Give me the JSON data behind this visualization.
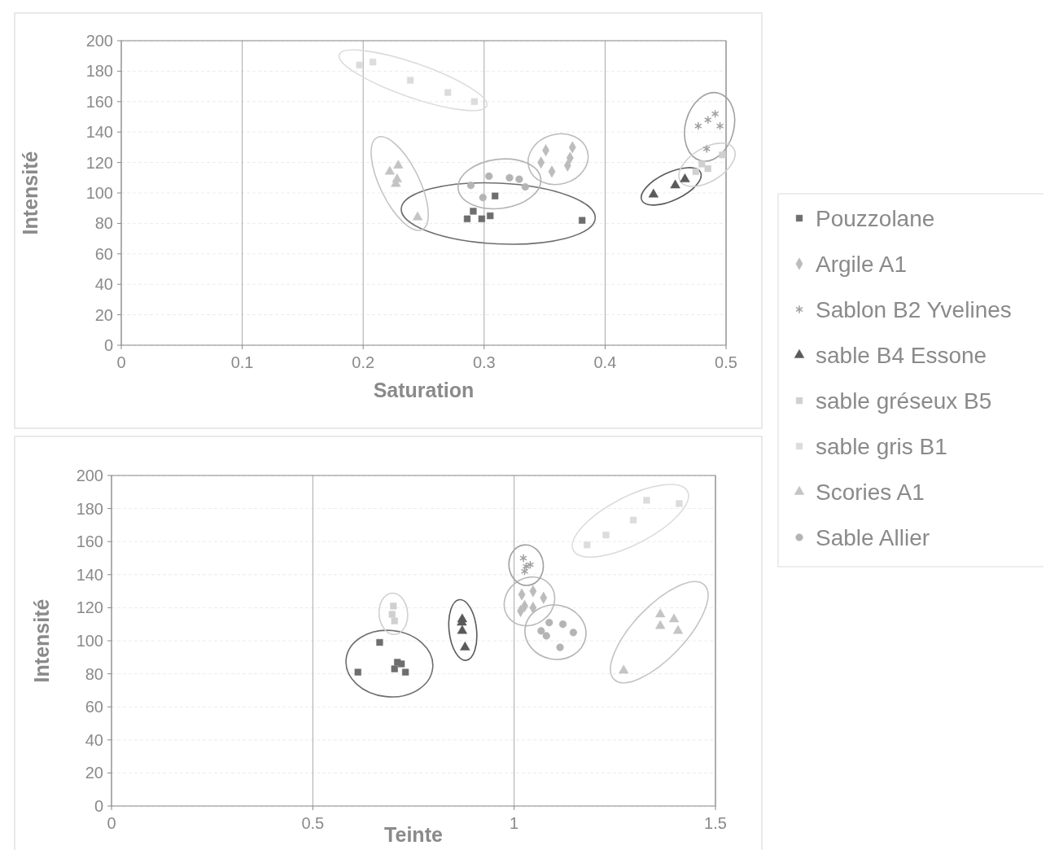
{
  "chart_data": [
    {
      "type": "scatter",
      "xlabel": "Saturation",
      "ylabel": "Intensité",
      "xlim": [
        0,
        0.5
      ],
      "xticks": [
        0,
        0.1,
        0.2,
        0.3,
        0.4,
        0.5
      ],
      "ylim": [
        0,
        200
      ],
      "yticks": [
        0,
        20,
        40,
        60,
        80,
        100,
        120,
        140,
        160,
        180,
        200
      ],
      "grid": true,
      "legend": "right",
      "series": [
        {
          "name": "Pouzzolane",
          "color": "#6e6e6e",
          "marker": "square",
          "x": [
            0.286,
            0.291,
            0.298,
            0.305,
            0.309,
            0.381
          ],
          "values": [
            83,
            88,
            83,
            85,
            98,
            82
          ]
        },
        {
          "name": "Argile A1",
          "color": "#bcbcbc",
          "marker": "diamond",
          "x": [
            0.351,
            0.373,
            0.347,
            0.371,
            0.369,
            0.356
          ],
          "values": [
            128,
            130,
            120,
            123,
            118,
            114
          ]
        },
        {
          "name": "Sablon B2 Yvelines",
          "color": "#a0a0a0",
          "marker": "cross",
          "x": [
            0.491,
            0.485,
            0.477,
            0.495,
            0.484
          ],
          "values": [
            152,
            148,
            144,
            144,
            129
          ]
        },
        {
          "name": "sable B4 Essone",
          "color": "#5a5a5a",
          "marker": "triangle",
          "x": [
            0.44,
            0.458,
            0.466
          ],
          "values": [
            99,
            105,
            109
          ]
        },
        {
          "name": "sable gréseux B5",
          "color": "#d0d0d0",
          "marker": "square",
          "x": [
            0.475,
            0.48,
            0.485,
            0.497
          ],
          "values": [
            114,
            119,
            116,
            125
          ]
        },
        {
          "name": "sable gris B1",
          "color": "#dcdcdc",
          "marker": "square",
          "x": [
            0.197,
            0.208,
            0.239,
            0.27,
            0.292
          ],
          "values": [
            184,
            186,
            174,
            166,
            160
          ]
        },
        {
          "name": "Scories A1",
          "color": "#c4c4c4",
          "marker": "triangle",
          "x": [
            0.229,
            0.222,
            0.228,
            0.227,
            0.245
          ],
          "values": [
            118,
            114,
            109,
            106,
            84
          ]
        },
        {
          "name": "Sable Allier",
          "color": "#b4b4b4",
          "marker": "circle",
          "x": [
            0.289,
            0.304,
            0.321,
            0.329,
            0.334,
            0.299
          ],
          "values": [
            105,
            111,
            110,
            109,
            104,
            97
          ]
        }
      ]
    },
    {
      "type": "scatter",
      "xlabel": "Teinte",
      "ylabel": "Intensité",
      "xlim": [
        0,
        1.5
      ],
      "xticks": [
        0,
        0.5,
        1,
        1.5
      ],
      "ylim": [
        0,
        200
      ],
      "yticks": [
        0,
        20,
        40,
        60,
        80,
        100,
        120,
        140,
        160,
        180,
        200
      ],
      "grid": true,
      "series": [
        {
          "color": "#6e6e6e",
          "marker": "square",
          "x": [
            0.666,
            0.612,
            0.71,
            0.72,
            0.703,
            0.73
          ],
          "values": [
            99,
            81,
            87,
            86,
            83,
            81
          ]
        },
        {
          "color": "#bcbcbc",
          "marker": "diamond",
          "x": [
            1.019,
            1.047,
            1.073,
            1.026,
            1.016,
            1.047
          ],
          "values": [
            128,
            130,
            126,
            121,
            118,
            120
          ]
        },
        {
          "color": "#a0a0a0",
          "marker": "cross",
          "x": [
            1.023,
            1.04,
            1.026,
            1.03
          ],
          "values": [
            150,
            146,
            142,
            145
          ]
        },
        {
          "color": "#5a5a5a",
          "marker": "triangle",
          "x": [
            0.871,
            0.87,
            0.871,
            0.878
          ],
          "values": [
            113,
            111,
            106,
            96
          ]
        },
        {
          "color": "#d0d0d0",
          "marker": "square",
          "x": [
            0.7,
            0.697,
            0.703
          ],
          "values": [
            121,
            116,
            112
          ]
        },
        {
          "color": "#dcdcdc",
          "marker": "square",
          "x": [
            1.181,
            1.228,
            1.296,
            1.329,
            1.41
          ],
          "values": [
            158,
            164,
            173,
            185,
            183
          ]
        },
        {
          "color": "#c4c4c4",
          "marker": "triangle",
          "x": [
            1.363,
            1.397,
            1.363,
            1.407,
            1.272
          ],
          "values": [
            116,
            113,
            109,
            106,
            82
          ]
        },
        {
          "color": "#b4b4b4",
          "marker": "circle",
          "x": [
            1.087,
            1.121,
            1.147,
            1.114,
            1.067,
            1.08
          ],
          "values": [
            111,
            110,
            105,
            96,
            106,
            103
          ]
        }
      ]
    }
  ]
}
